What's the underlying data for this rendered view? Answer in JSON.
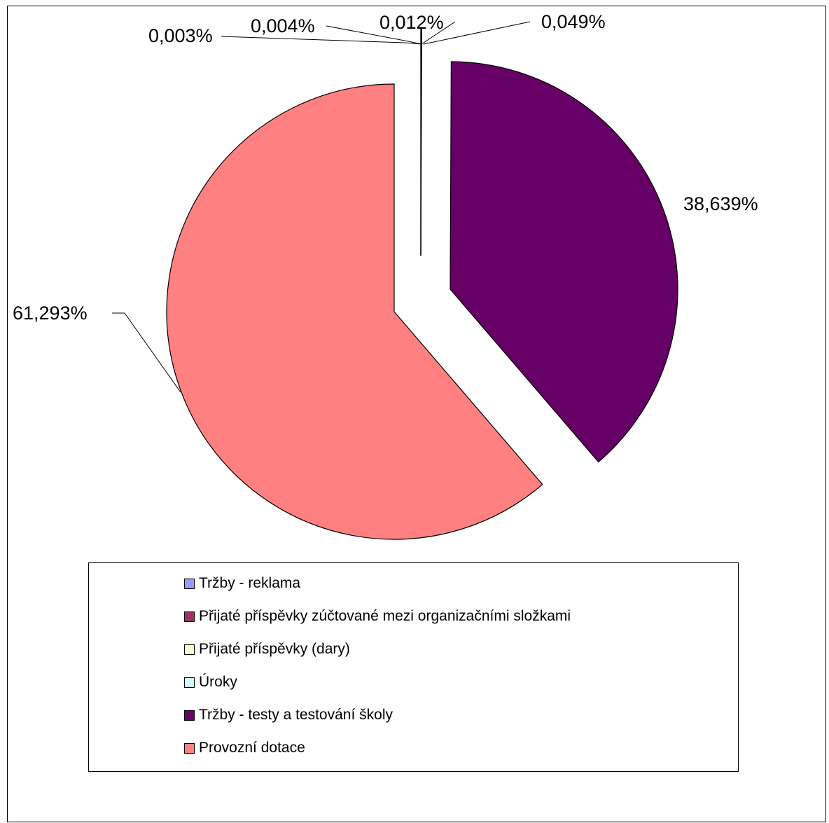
{
  "chart_data": {
    "type": "pie",
    "title": "",
    "slices": [
      {
        "name": "Tržby - reklama",
        "value": 0.003,
        "label": "0,003%",
        "color": "#9999FF"
      },
      {
        "name": "Přijaté příspěvky zúčtované mezi organizačními složkami",
        "value": 0.004,
        "label": "0,004%",
        "color": "#993366"
      },
      {
        "name": "Přijaté příspěvky (dary)",
        "value": 0.012,
        "label": "0,012%",
        "color": "#FFFFCC"
      },
      {
        "name": "Úroky",
        "value": 0.049,
        "label": "0,049%",
        "color": "#CCFFFF"
      },
      {
        "name": "Tržby - testy a testování školy",
        "value": 38.639,
        "label": "38,639%",
        "color": "#660066"
      },
      {
        "name": "Provozní dotace",
        "value": 61.293,
        "label": "61,293%",
        "color": "#FF8080"
      }
    ],
    "exploded": true,
    "legend_position": "bottom"
  },
  "legend": {
    "items": [
      {
        "label": "Tržby - reklama",
        "color": "#9999FF"
      },
      {
        "label": "Přijaté příspěvky zúčtované mezi organizačními složkami",
        "color": "#993366"
      },
      {
        "label": "Přijaté příspěvky (dary)",
        "color": "#FFFFCC"
      },
      {
        "label": "Úroky",
        "color": "#CCFFFF"
      },
      {
        "label": "Tržby - testy a testování školy",
        "color": "#660066"
      },
      {
        "label": "Provozní dotace",
        "color": "#FF8080"
      }
    ]
  }
}
